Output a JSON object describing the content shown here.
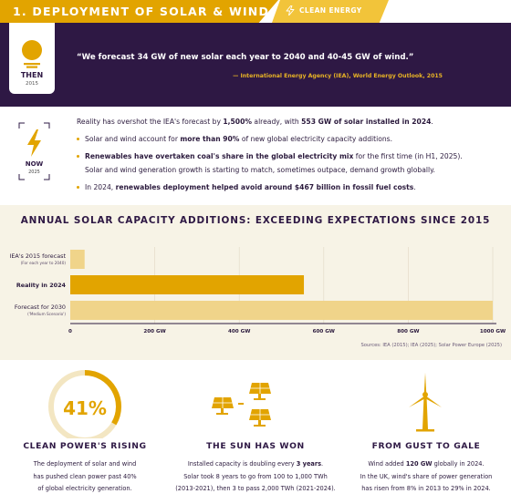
{
  "header": {
    "title": "1. DEPLOYMENT OF SOLAR & WIND",
    "tag": "CLEAN ENERGY",
    "tag_icon": "bolt-icon"
  },
  "then": {
    "badge_icon": "sun-icon",
    "label": "THEN",
    "year": "2015",
    "quote": "“We forecast 34 GW of new solar each year to 2040 and 40-45 GW of wind.”",
    "source": "— International Energy Agency (IEA), World Energy Outlook, 2015"
  },
  "now": {
    "badge_icon": "bolt-icon",
    "label": "NOW",
    "year": "2025",
    "lines": {
      "l1_a": "Reality has overshot the IEA's forecast by ",
      "l1_b": "1,500%",
      "l1_c": " already, with ",
      "l1_d": "553 GW of solar installed in 2024",
      "l1_e": ".",
      "l2_a": "Solar and wind account for ",
      "l2_b": "more than 90%",
      "l2_c": " of new global electricity capacity additions.",
      "l3_a": "Renewables have overtaken coal's share in the global electricity mix",
      "l3_b": " for the first time (in H1, 2025).",
      "l4": "Solar and wind generation growth is starting to match, sometimes outpace, demand growth globally.",
      "l5_a": "In 2024, ",
      "l5_b": "renewables deployment helped avoid around $467 billion in fossil fuel costs",
      "l5_c": "."
    }
  },
  "chart_data": {
    "type": "bar",
    "orientation": "horizontal",
    "title": "ANNUAL SOLAR CAPACITY ADDITIONS: EXCEEDING EXPECTATIONS SINCE 2015",
    "categories": [
      {
        "label": "IEA's 2015 forecast",
        "sublabel": "(For each year to 2040)",
        "bold": false
      },
      {
        "label": "Reality in 2024",
        "sublabel": "",
        "bold": true
      },
      {
        "label": "Forecast for 2030",
        "sublabel": "('Medium Scenario')",
        "bold": false
      }
    ],
    "values": [
      34,
      553,
      1000
    ],
    "bar_colors": [
      "#f0d48a",
      "#e2a400",
      "#f0d48a"
    ],
    "xlim": [
      0,
      1000
    ],
    "ticks": [
      {
        "value": 0,
        "label": "0"
      },
      {
        "value": 200,
        "label": "200 GW"
      },
      {
        "value": 400,
        "label": "400 GW"
      },
      {
        "value": 600,
        "label": "600 GW"
      },
      {
        "value": 800,
        "label": "800 GW"
      },
      {
        "value": 1000,
        "label": "1000 GW"
      }
    ],
    "grid": true,
    "source": "Sources: IEA (2015); IEA (2025); Solar Power Europe (2025)"
  },
  "cards": [
    {
      "icon": "pie-ring-icon",
      "value": "41%",
      "title": "CLEAN POWER'S RISING",
      "body": {
        "l1": "The deployment of solar and wind",
        "l2": "has pushed clean power past 40%",
        "l3": "of global electricity generation."
      }
    },
    {
      "icon": "solar-panels-icon",
      "title": "THE SUN HAS WON",
      "body": {
        "l1_a": "Installed capacity is doubling every ",
        "l1_b": "3 years",
        "l1_c": ".",
        "l2": "Solar took 8 years to go from 100 to 1,000 TWh",
        "l3": "(2013-2021), then 3 to pass 2,000 TWh (2021-2024)."
      }
    },
    {
      "icon": "wind-turbine-icon",
      "title": "FROM GUST TO GALE",
      "body": {
        "l1_a": "Wind added ",
        "l1_b": "120 GW",
        "l1_c": " globally in 2024.",
        "l2": "In the UK, wind's share of power generation",
        "l3": "has risen from 8% in 2013 to 29% in 2024."
      }
    }
  ],
  "colors": {
    "accent": "#e2a400",
    "accent_light": "#f0d48a",
    "dark": "#2e1844",
    "chart_bg": "#f7f3e6"
  }
}
